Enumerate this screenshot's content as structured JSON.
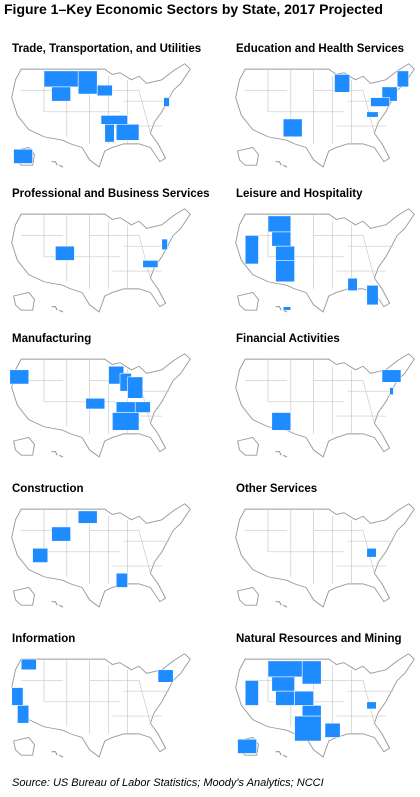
{
  "header": {
    "title": "Figure 1–Key Economic Sectors by State, 2017 Projected"
  },
  "panels": [
    {
      "title": "Trade, Transportation, and Utilities"
    },
    {
      "title": "Education and Health Services"
    },
    {
      "title": "Professional and Business Services"
    },
    {
      "title": "Leisure and Hospitality"
    },
    {
      "title": "Manufacturing"
    },
    {
      "title": "Financial Activities"
    },
    {
      "title": "Construction"
    },
    {
      "title": "Other Services"
    },
    {
      "title": "Information"
    },
    {
      "title": "Natural Resources and Mining"
    }
  ],
  "footer": {
    "source": "Source: US Bureau of Labor Statistics; Moody's Analytics; NCCI"
  }
}
